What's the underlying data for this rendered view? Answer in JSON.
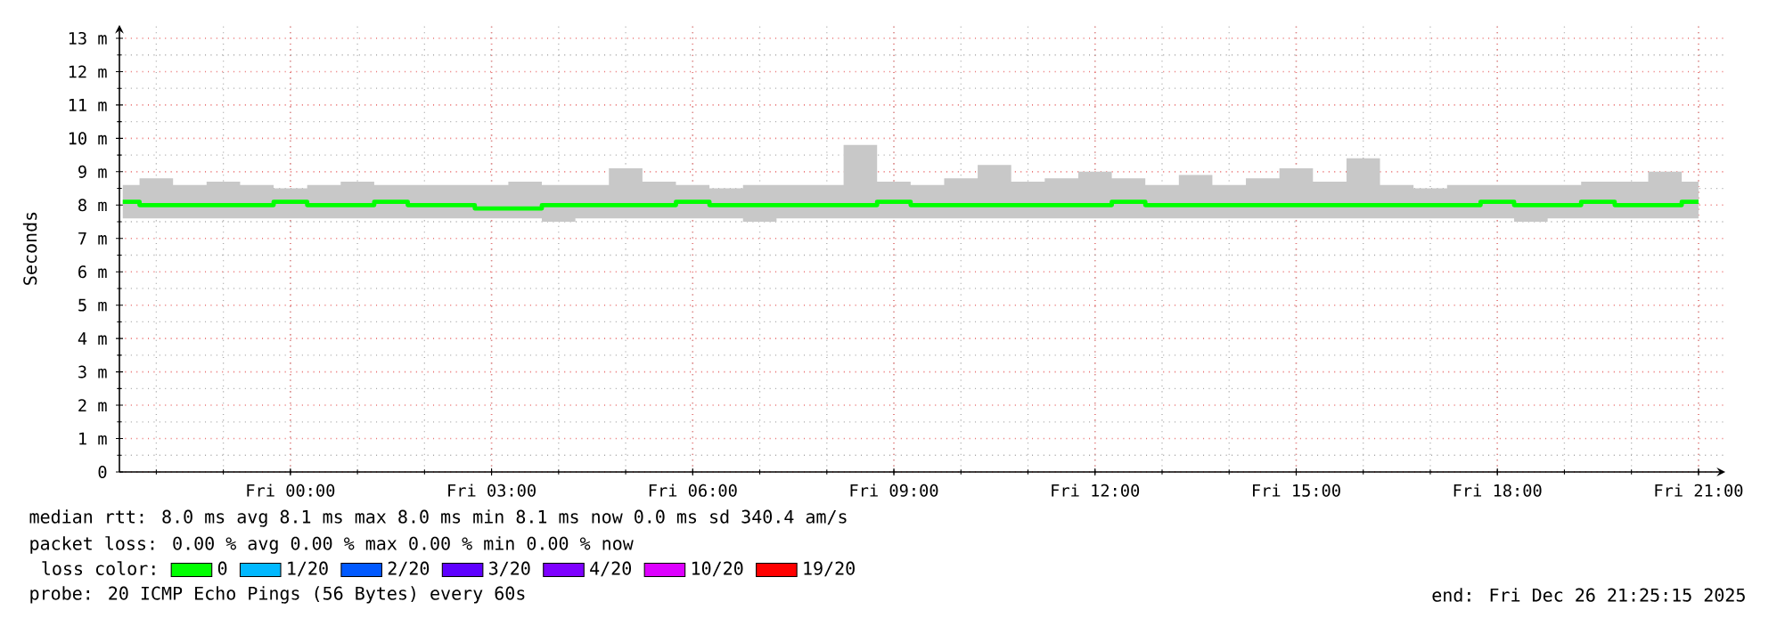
{
  "chart_data": {
    "type": "step",
    "ylabel": "Seconds",
    "xlim": [
      "2025-12-25T21:27",
      "2025-12-26T21:24"
    ],
    "ylim": [
      0,
      13.4
    ],
    "xticks": [
      {
        "value": "2025-12-26T00:00",
        "label": "Fri 00:00"
      },
      {
        "value": "2025-12-26T03:00",
        "label": "Fri 03:00"
      },
      {
        "value": "2025-12-26T06:00",
        "label": "Fri 06:00"
      },
      {
        "value": "2025-12-26T09:00",
        "label": "Fri 09:00"
      },
      {
        "value": "2025-12-26T12:00",
        "label": "Fri 12:00"
      },
      {
        "value": "2025-12-26T15:00",
        "label": "Fri 15:00"
      },
      {
        "value": "2025-12-26T18:00",
        "label": "Fri 18:00"
      },
      {
        "value": "2025-12-26T21:00",
        "label": "Fri 21:00"
      }
    ],
    "yticks": [
      0,
      {
        "value": 1,
        "label": "1 m"
      },
      {
        "value": 2,
        "label": "2 m"
      },
      {
        "value": 3,
        "label": "3 m"
      },
      {
        "value": 4,
        "label": "4 m"
      },
      {
        "value": 5,
        "label": "5 m"
      },
      {
        "value": 6,
        "label": "6 m"
      },
      {
        "value": 7,
        "label": "7 m"
      },
      {
        "value": 8,
        "label": "8 m"
      },
      {
        "value": 9,
        "label": "9 m"
      },
      {
        "value": 10,
        "label": "10 m"
      },
      {
        "value": 11,
        "label": "11 m"
      },
      {
        "value": 12,
        "label": "12 m"
      },
      {
        "value": 13,
        "label": "13 m"
      }
    ],
    "grid": true,
    "legend": "bottom",
    "legend_title": "loss color:",
    "marker": "none",
    "x": [
      "2025-12-25T21:30",
      "2025-12-25T22:00",
      "2025-12-25T22:30",
      "2025-12-25T23:00",
      "2025-12-25T23:30",
      "2025-12-26T00:00",
      "2025-12-26T00:30",
      "2025-12-26T01:00",
      "2025-12-26T01:30",
      "2025-12-26T02:00",
      "2025-12-26T02:30",
      "2025-12-26T03:00",
      "2025-12-26T03:30",
      "2025-12-26T04:00",
      "2025-12-26T04:30",
      "2025-12-26T05:00",
      "2025-12-26T05:30",
      "2025-12-26T06:00",
      "2025-12-26T06:30",
      "2025-12-26T07:00",
      "2025-12-26T07:30",
      "2025-12-26T08:00",
      "2025-12-26T08:30",
      "2025-12-26T09:00",
      "2025-12-26T09:30",
      "2025-12-26T10:00",
      "2025-12-26T10:30",
      "2025-12-26T11:00",
      "2025-12-26T11:30",
      "2025-12-26T12:00",
      "2025-12-26T12:30",
      "2025-12-26T13:00",
      "2025-12-26T13:30",
      "2025-12-26T14:00",
      "2025-12-26T14:30",
      "2025-12-26T15:00",
      "2025-12-26T15:30",
      "2025-12-26T16:00",
      "2025-12-26T16:30",
      "2025-12-26T17:00",
      "2025-12-26T17:30",
      "2025-12-26T18:00",
      "2025-12-26T18:30",
      "2025-12-26T19:00",
      "2025-12-26T19:30",
      "2025-12-26T20:00",
      "2025-12-26T20:30",
      "2025-12-26T21:00"
    ],
    "series": [
      {
        "name": "0",
        "color": "#00ff00",
        "values": [
          8.1,
          8.0,
          8.0,
          8.0,
          8.0,
          8.1,
          8.0,
          8.0,
          8.1,
          8.0,
          8.0,
          7.9,
          7.9,
          8.0,
          8.0,
          8.0,
          8.0,
          8.1,
          8.0,
          8.0,
          8.0,
          8.0,
          8.0,
          8.1,
          8.0,
          8.0,
          8.0,
          8.0,
          8.0,
          8.0,
          8.1,
          8.0,
          8.0,
          8.0,
          8.0,
          8.0,
          8.0,
          8.0,
          8.0,
          8.0,
          8.0,
          8.1,
          8.0,
          8.0,
          8.1,
          8.0,
          8.0,
          8.1
        ],
        "lower": [
          7.6,
          7.6,
          7.6,
          7.6,
          7.6,
          7.6,
          7.6,
          7.6,
          7.6,
          7.6,
          7.6,
          7.6,
          7.6,
          7.5,
          7.6,
          7.6,
          7.6,
          7.6,
          7.6,
          7.5,
          7.6,
          7.6,
          7.6,
          7.6,
          7.6,
          7.6,
          7.6,
          7.6,
          7.6,
          7.6,
          7.6,
          7.6,
          7.6,
          7.6,
          7.6,
          7.6,
          7.6,
          7.6,
          7.6,
          7.6,
          7.6,
          7.6,
          7.5,
          7.6,
          7.6,
          7.6,
          7.6,
          7.6
        ],
        "upper": [
          8.6,
          8.8,
          8.6,
          8.7,
          8.6,
          8.5,
          8.6,
          8.7,
          8.6,
          8.6,
          8.6,
          8.6,
          8.7,
          8.6,
          8.6,
          9.1,
          8.7,
          8.6,
          8.5,
          8.6,
          8.6,
          8.6,
          9.8,
          8.7,
          8.6,
          8.8,
          9.2,
          8.7,
          8.8,
          9.0,
          8.8,
          8.6,
          8.9,
          8.6,
          8.8,
          9.1,
          8.7,
          9.4,
          8.6,
          8.5,
          8.6,
          8.6,
          8.6,
          8.6,
          8.7,
          8.7,
          9.0,
          8.7
        ]
      },
      {
        "name": "1/20",
        "color": "#00b8ff",
        "values": [
          null,
          null,
          null,
          null,
          null,
          null,
          null,
          null,
          null,
          null,
          null,
          null,
          null,
          null,
          null,
          null,
          null,
          null,
          null,
          null,
          null,
          null,
          null,
          null,
          null,
          null,
          null,
          null,
          null,
          null,
          null,
          null,
          null,
          null,
          null,
          null,
          null,
          null,
          null,
          null,
          null,
          null,
          null,
          null,
          null,
          null,
          null,
          null
        ]
      },
      {
        "name": "2/20",
        "color": "#0059ff",
        "values": [
          null,
          null,
          null,
          null,
          null,
          null,
          null,
          null,
          null,
          null,
          null,
          null,
          null,
          null,
          null,
          null,
          null,
          null,
          null,
          null,
          null,
          null,
          null,
          null,
          null,
          null,
          null,
          null,
          null,
          null,
          null,
          null,
          null,
          null,
          null,
          null,
          null,
          null,
          null,
          null,
          null,
          null,
          null,
          null,
          null,
          null,
          null,
          null
        ]
      },
      {
        "name": "3/20",
        "color": "#5e00ff",
        "values": [
          null,
          null,
          null,
          null,
          null,
          null,
          null,
          null,
          null,
          null,
          null,
          null,
          null,
          null,
          null,
          null,
          null,
          null,
          null,
          null,
          null,
          null,
          null,
          null,
          null,
          null,
          null,
          null,
          null,
          null,
          null,
          null,
          null,
          null,
          null,
          null,
          null,
          null,
          null,
          null,
          null,
          null,
          null,
          null,
          null,
          null,
          null,
          null
        ]
      },
      {
        "name": "4/20",
        "color": "#7e00ff",
        "values": [
          null,
          null,
          null,
          null,
          null,
          null,
          null,
          null,
          null,
          null,
          null,
          null,
          null,
          null,
          null,
          null,
          null,
          null,
          null,
          null,
          null,
          null,
          null,
          null,
          null,
          null,
          null,
          null,
          null,
          null,
          null,
          null,
          null,
          null,
          null,
          null,
          null,
          null,
          null,
          null,
          null,
          null,
          null,
          null,
          null,
          null,
          null,
          null
        ]
      },
      {
        "name": "10/20",
        "color": "#dd00ff",
        "values": [
          null,
          null,
          null,
          null,
          null,
          null,
          null,
          null,
          null,
          null,
          null,
          null,
          null,
          null,
          null,
          null,
          null,
          null,
          null,
          null,
          null,
          null,
          null,
          null,
          null,
          null,
          null,
          null,
          null,
          null,
          null,
          null,
          null,
          null,
          null,
          null,
          null,
          null,
          null,
          null,
          null,
          null,
          null,
          null,
          null,
          null,
          null,
          null
        ]
      },
      {
        "name": "19/20",
        "color": "#ff0000",
        "values": [
          null,
          null,
          null,
          null,
          null,
          null,
          null,
          null,
          null,
          null,
          null,
          null,
          null,
          null,
          null,
          null,
          null,
          null,
          null,
          null,
          null,
          null,
          null,
          null,
          null,
          null,
          null,
          null,
          null,
          null,
          null,
          null,
          null,
          null,
          null,
          null,
          null,
          null,
          null,
          null,
          null,
          null,
          null,
          null,
          null,
          null,
          null,
          null
        ]
      }
    ],
    "annotations": [
      "median rtt:  8.0 ms avg  8.1 ms max  8.0 ms min  8.1 ms now  0.0 ms sd  340.4   am/s",
      "packet loss: 0.00 % avg  0.00 % max  0.00 % min  0.00 % now",
      "probe:       20 ICMP Echo Pings (56 Bytes) every 60s",
      "end: Fri Dec 26 21:25:15 2025"
    ]
  }
}
